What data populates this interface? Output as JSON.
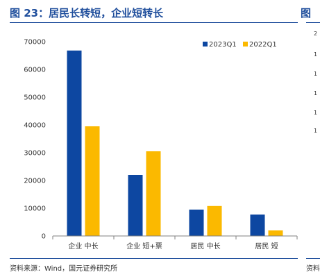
{
  "figure": {
    "title": "图 23：居民长转短，企业短转长",
    "right_title_fragment": "图",
    "source": "资料来源：Wind，国元证券研究所",
    "right_source_fragment": "资料",
    "right_axis_fragment": [
      "2",
      "1",
      "1",
      "1",
      "1",
      "1"
    ]
  },
  "colors": {
    "title": "#1f4e9c",
    "series_2023Q1": "#0d47a1",
    "series_2022Q1": "#fbb900"
  },
  "chart_data": {
    "type": "bar",
    "categories": [
      "企业 中长",
      "企业 短+票",
      "居民 中长",
      "居民 短"
    ],
    "series": [
      {
        "name": "2023Q1",
        "values": [
          66800,
          22000,
          9500,
          7700
        ]
      },
      {
        "name": "2022Q1",
        "values": [
          39500,
          30500,
          10800,
          2000
        ]
      }
    ],
    "y_ticks": [
      "0",
      "10000",
      "20000",
      "30000",
      "40000",
      "50000",
      "60000",
      "70000"
    ],
    "ylim": [
      0,
      70000
    ],
    "grid": false,
    "legend_position": "top-right"
  }
}
